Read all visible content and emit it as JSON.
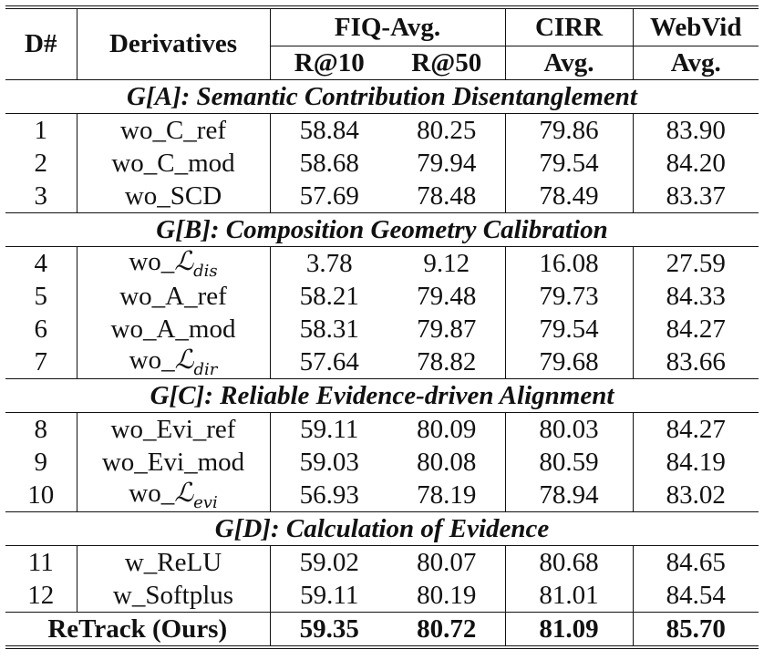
{
  "header": {
    "d_num": "D#",
    "derivatives": "Derivatives",
    "fiq_avg": "FIQ-Avg.",
    "cirr": "CIRR",
    "webvid": "WebVid",
    "r10": "R@10",
    "r50": "R@50",
    "cirr_avg": "Avg.",
    "webvid_avg": "Avg."
  },
  "groups": [
    {
      "title": "G[A]: Semantic Contribution Disentanglement",
      "rows": [
        {
          "d": "1",
          "name": "wo_C_ref",
          "r10": "58.84",
          "r50": "80.25",
          "cirr": "79.86",
          "webvid": "83.90"
        },
        {
          "d": "2",
          "name": "wo_C_mod",
          "r10": "58.68",
          "r50": "79.94",
          "cirr": "79.54",
          "webvid": "84.20"
        },
        {
          "d": "3",
          "name": "wo_SCD",
          "r10": "57.69",
          "r50": "78.48",
          "cirr": "78.49",
          "webvid": "83.37"
        }
      ]
    },
    {
      "title": "G[B]: Composition Geometry Calibration",
      "rows": [
        {
          "d": "4",
          "name_prefix": "wo_",
          "name_sym": "ℒ",
          "name_sub": "dis",
          "r10": "3.78",
          "r50": "9.12",
          "cirr": "16.08",
          "webvid": "27.59"
        },
        {
          "d": "5",
          "name": "wo_A_ref",
          "r10": "58.21",
          "r50": "79.48",
          "cirr": "79.73",
          "webvid": "84.33"
        },
        {
          "d": "6",
          "name": "wo_A_mod",
          "r10": "58.31",
          "r50": "79.87",
          "cirr": "79.54",
          "webvid": "84.27"
        },
        {
          "d": "7",
          "name_prefix": "wo_",
          "name_sym": "ℒ",
          "name_sub": "dir",
          "r10": "57.64",
          "r50": "78.82",
          "cirr": "79.68",
          "webvid": "83.66"
        }
      ]
    },
    {
      "title": "G[C]: Reliable Evidence-driven Alignment",
      "rows": [
        {
          "d": "8",
          "name": "wo_Evi_ref",
          "r10": "59.11",
          "r50": "80.09",
          "cirr": "80.03",
          "webvid": "84.27"
        },
        {
          "d": "9",
          "name": "wo_Evi_mod",
          "r10": "59.03",
          "r50": "80.08",
          "cirr": "80.59",
          "webvid": "84.19"
        },
        {
          "d": "10",
          "name_prefix": "wo_",
          "name_sym": "ℒ",
          "name_sub": "evi",
          "r10": "56.93",
          "r50": "78.19",
          "cirr": "78.94",
          "webvid": "83.02"
        }
      ]
    },
    {
      "title": "G[D]: Calculation of Evidence",
      "rows": [
        {
          "d": "11",
          "name": "w_ReLU",
          "r10": "59.02",
          "r50": "80.07",
          "cirr": "80.68",
          "webvid": "84.65"
        },
        {
          "d": "12",
          "name": "w_Softplus",
          "r10": "59.11",
          "r50": "80.19",
          "cirr": "81.01",
          "webvid": "84.54"
        }
      ]
    }
  ],
  "final": {
    "name": "ReTrack (Ours)",
    "r10": "59.35",
    "r50": "80.72",
    "cirr": "81.09",
    "webvid": "85.70"
  }
}
